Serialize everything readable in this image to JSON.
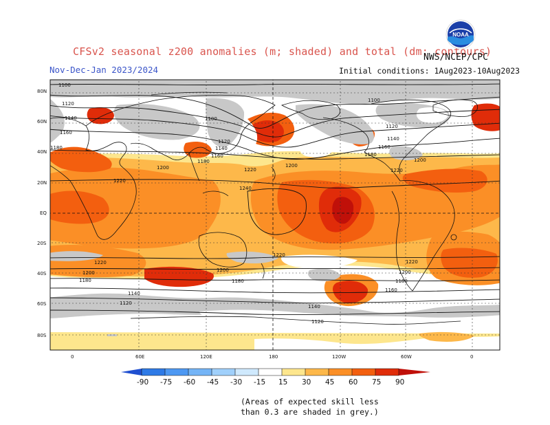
{
  "header": {
    "title": "CFSv2 seasonal z200 anomalies (m; shaded) and total (dm; contours)",
    "agency": "NWS/NCEP/CPC",
    "logo_text": "NOAA",
    "period": "Nov-Dec-Jan 2023/2024",
    "initial_conditions": "Initial conditions: 1Aug2023-10Aug2023"
  },
  "map": {
    "projection": "equirectangular",
    "lat_labels": [
      "80N",
      "60N",
      "40N",
      "20N",
      "EQ",
      "20S",
      "40S",
      "60S",
      "80S"
    ],
    "lon_labels": [
      "0",
      "60E",
      "120E",
      "180",
      "120W",
      "60W",
      "0"
    ],
    "contour_labels": [
      {
        "text": "1100"
      },
      {
        "text": "1120"
      },
      {
        "text": "1140"
      },
      {
        "text": "1160"
      },
      {
        "text": "1180"
      },
      {
        "text": "1100"
      },
      {
        "text": "1120"
      },
      {
        "text": "1140"
      },
      {
        "text": "1160"
      },
      {
        "text": "1180"
      },
      {
        "text": "1100"
      },
      {
        "text": "1120"
      },
      {
        "text": "1140"
      },
      {
        "text": "1160"
      },
      {
        "text": "1180"
      },
      {
        "text": "1200"
      },
      {
        "text": "1220"
      },
      {
        "text": "1220"
      },
      {
        "text": "1200"
      },
      {
        "text": "1220"
      },
      {
        "text": "1200"
      },
      {
        "text": "1240"
      },
      {
        "text": "1220"
      },
      {
        "text": "1220"
      },
      {
        "text": "1220"
      },
      {
        "text": "1200"
      },
      {
        "text": "1200"
      },
      {
        "text": "1200"
      },
      {
        "text": "1180"
      },
      {
        "text": "1180"
      },
      {
        "text": "1180"
      },
      {
        "text": "1160"
      },
      {
        "text": "1140"
      },
      {
        "text": "1140"
      },
      {
        "text": "1120"
      },
      {
        "text": "1120"
      }
    ],
    "colors": {
      "grey": "#c8c8c8",
      "a15": "#fde68d",
      "a30": "#fdb84a",
      "a45": "#fb8f26",
      "a60": "#f35f0f",
      "a75": "#e02c09",
      "a90": "#c01009"
    }
  },
  "colorbar": {
    "labels": [
      "-90",
      "-75",
      "-60",
      "-45",
      "-30",
      "-15",
      "15",
      "30",
      "45",
      "60",
      "75",
      "90"
    ],
    "colors": [
      "#1f4fd0",
      "#2e7ae6",
      "#4d98f2",
      "#74b4f6",
      "#a0d0fb",
      "#cfe9fd",
      "#ffffff",
      "#fde68d",
      "#fdb84a",
      "#fb8f26",
      "#f35f0f",
      "#e02c09",
      "#c01009"
    ]
  },
  "note": {
    "line1": "(Areas of expected skill less",
    "line2": "than 0.3 are shaded in grey.)"
  }
}
